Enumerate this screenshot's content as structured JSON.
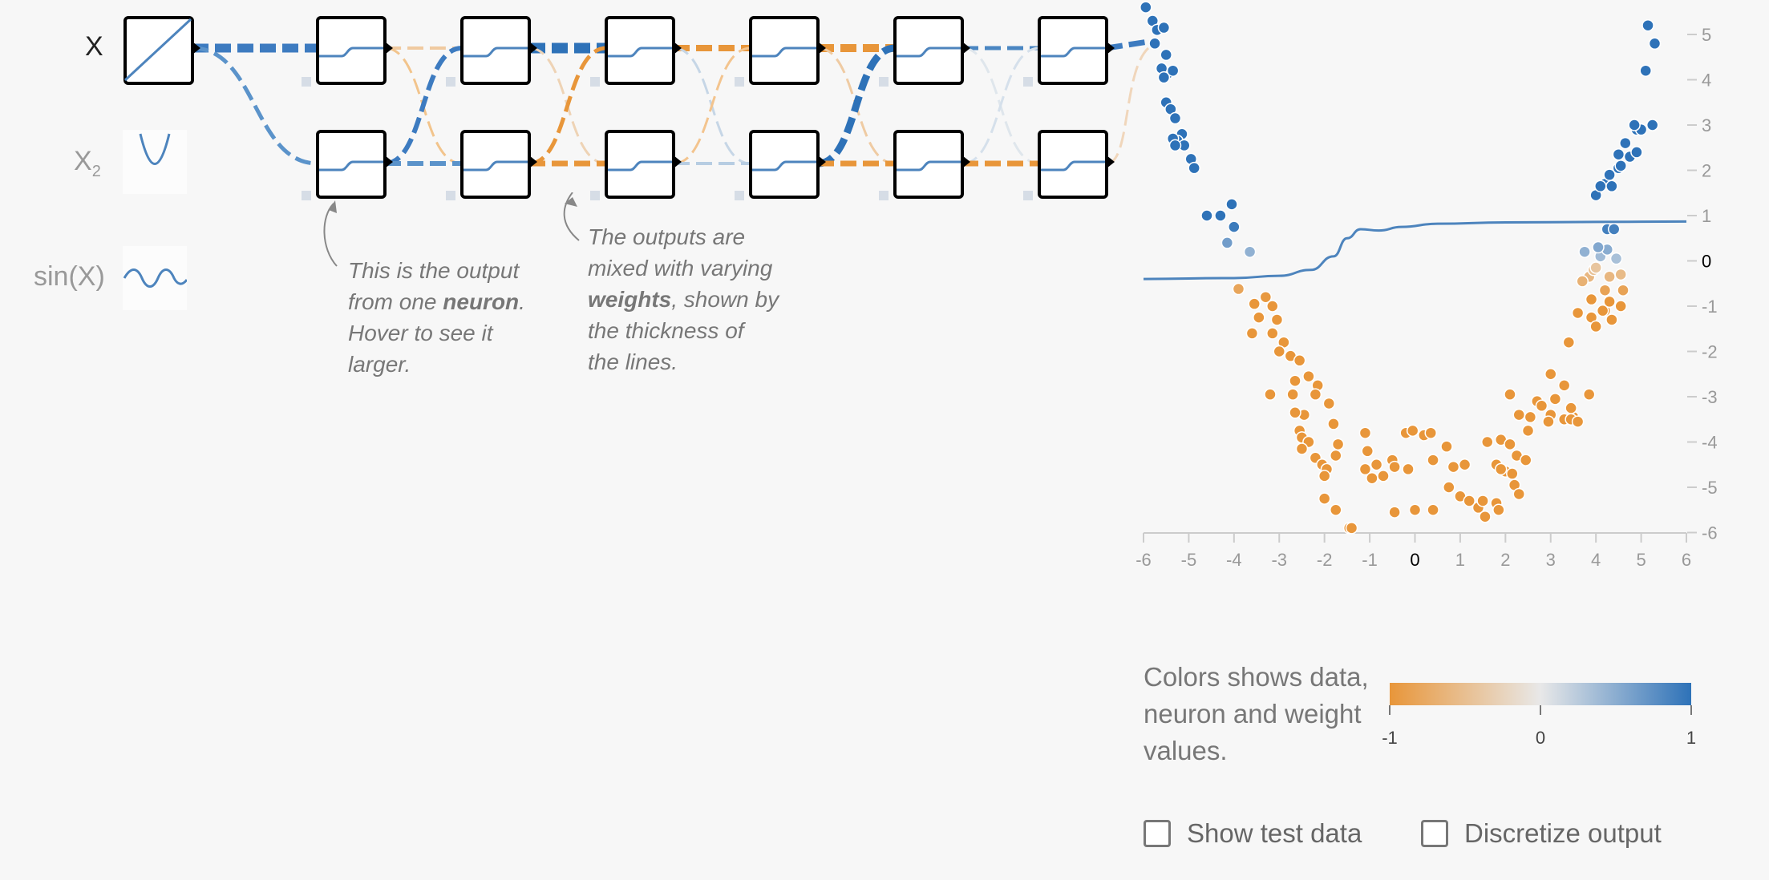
{
  "features": [
    {
      "label": "X",
      "sub": "",
      "color": "#000",
      "icon": "linear-icon"
    },
    {
      "label": "X",
      "sub": "2",
      "color": "#999",
      "icon": "parabola-icon"
    },
    {
      "label": "sin(X)",
      "sub": "",
      "color": "#999",
      "icon": "sine-wave-icon"
    }
  ],
  "annotations": {
    "neuron": {
      "line1": "This is the output",
      "line2_pre": "from one ",
      "line2_bold": "neuron",
      "line2_post": ".",
      "line3": "Hover to see it",
      "line4": "larger."
    },
    "weights": {
      "line1": "The outputs are",
      "line2": "mixed with varying",
      "line3_bold": "weights",
      "line3_post": ", shown by",
      "line4": "the thickness of",
      "line5": "the lines."
    }
  },
  "colors": {
    "negative": "#e8963a",
    "neutral": "#e8e8e8",
    "positive": "#2e72b8"
  },
  "chart_data": {
    "type": "scatter",
    "x_ticks": [
      "-6",
      "-5",
      "-4",
      "-3",
      "-2",
      "-1",
      "0",
      "1",
      "2",
      "3",
      "4",
      "5",
      "6"
    ],
    "y_ticks": [
      "5",
      "4",
      "3",
      "2",
      "1",
      "0",
      "-1",
      "-2",
      "-3",
      "-4",
      "-5",
      "-6"
    ],
    "xlim": [
      -6,
      6
    ],
    "ylim": [
      -6,
      5.5
    ],
    "prediction_curve": [
      [
        -6,
        -0.4
      ],
      [
        -4,
        -0.38
      ],
      [
        -3,
        -0.33
      ],
      [
        -2.3,
        -0.2
      ],
      [
        -1.8,
        0.1
      ],
      [
        -1.5,
        0.5
      ],
      [
        -1.2,
        0.7
      ],
      [
        -0.8,
        0.67
      ],
      [
        -0.3,
        0.75
      ],
      [
        0.5,
        0.82
      ],
      [
        2,
        0.85
      ],
      [
        4,
        0.86
      ],
      [
        6,
        0.87
      ]
    ],
    "points": [
      [
        -5.95,
        5.6
      ],
      [
        -5.8,
        5.3
      ],
      [
        -5.7,
        5.1
      ],
      [
        -5.55,
        5.15
      ],
      [
        -5.75,
        4.8
      ],
      [
        -5.5,
        4.55
      ],
      [
        -5.45,
        4.15
      ],
      [
        -5.6,
        4.25
      ],
      [
        -5.35,
        4.2
      ],
      [
        -5.55,
        4.05
      ],
      [
        -5.5,
        3.5
      ],
      [
        -5.4,
        3.35
      ],
      [
        -5.3,
        3.15
      ],
      [
        -5.15,
        2.8
      ],
      [
        -5.25,
        2.65
      ],
      [
        -5.1,
        2.55
      ],
      [
        -5.35,
        2.7
      ],
      [
        -5.3,
        2.55
      ],
      [
        -4.95,
        2.25
      ],
      [
        -4.88,
        2.05
      ],
      [
        -4.6,
        1.0
      ],
      [
        -4.3,
        1.0
      ],
      [
        -4.05,
        1.25
      ],
      [
        -4.0,
        0.75
      ],
      [
        -4.15,
        0.4
      ],
      [
        -3.65,
        0.2
      ],
      [
        -3.9,
        -0.62
      ],
      [
        -3.55,
        -0.95
      ],
      [
        -3.3,
        -0.8
      ],
      [
        -3.15,
        -1.0
      ],
      [
        -3.45,
        -1.25
      ],
      [
        -3.05,
        -1.3
      ],
      [
        -3.6,
        -1.6
      ],
      [
        -3.15,
        -1.6
      ],
      [
        -2.9,
        -1.8
      ],
      [
        -3.0,
        -2.0
      ],
      [
        -2.75,
        -2.1
      ],
      [
        -2.55,
        -2.2
      ],
      [
        -2.35,
        -2.55
      ],
      [
        -2.65,
        -2.65
      ],
      [
        -2.15,
        -2.75
      ],
      [
        -3.2,
        -2.95
      ],
      [
        -2.7,
        -2.95
      ],
      [
        -2.2,
        -2.95
      ],
      [
        -2.45,
        -3.4
      ],
      [
        -2.65,
        -3.35
      ],
      [
        -2.55,
        -3.75
      ],
      [
        -2.5,
        -3.9
      ],
      [
        -2.35,
        -4.0
      ],
      [
        -2.5,
        -4.15
      ],
      [
        -2.2,
        -4.35
      ],
      [
        -1.9,
        -3.15
      ],
      [
        -1.8,
        -3.6
      ],
      [
        -1.7,
        -4.05
      ],
      [
        -1.75,
        -4.3
      ],
      [
        -2.05,
        -4.5
      ],
      [
        -1.95,
        -4.6
      ],
      [
        -2.0,
        -4.75
      ],
      [
        -1.1,
        -3.8
      ],
      [
        -1.05,
        -4.2
      ],
      [
        -1.1,
        -4.6
      ],
      [
        -0.95,
        -4.8
      ],
      [
        -0.85,
        -4.5
      ],
      [
        -0.7,
        -4.75
      ],
      [
        -0.5,
        -4.4
      ],
      [
        -0.2,
        -3.8
      ],
      [
        -0.05,
        -3.75
      ],
      [
        -0.45,
        -4.55
      ],
      [
        -0.15,
        -4.6
      ],
      [
        -2.0,
        -5.25
      ],
      [
        -1.75,
        -5.5
      ],
      [
        -1.45,
        -5.9
      ],
      [
        -1.4,
        -5.9
      ],
      [
        0.2,
        -3.85
      ],
      [
        0.35,
        -3.8
      ],
      [
        0.7,
        -4.1
      ],
      [
        0.4,
        -4.4
      ],
      [
        0.85,
        -4.55
      ],
      [
        1.1,
        -4.5
      ],
      [
        0.75,
        -5.0
      ],
      [
        1.0,
        -5.2
      ],
      [
        1.2,
        -5.3
      ],
      [
        0.4,
        -5.5
      ],
      [
        0.0,
        -5.5
      ],
      [
        -0.45,
        -5.55
      ],
      [
        1.4,
        -5.45
      ],
      [
        1.5,
        -5.3
      ],
      [
        1.8,
        -5.35
      ],
      [
        1.55,
        -5.65
      ],
      [
        1.6,
        -4.0
      ],
      [
        1.9,
        -3.95
      ],
      [
        1.8,
        -4.5
      ],
      [
        2.0,
        -4.65
      ],
      [
        2.15,
        -4.7
      ],
      [
        1.9,
        -4.6
      ],
      [
        2.2,
        -4.95
      ],
      [
        2.3,
        -5.15
      ],
      [
        1.85,
        -5.5
      ],
      [
        2.1,
        -4.05
      ],
      [
        2.25,
        -4.3
      ],
      [
        2.45,
        -4.4
      ],
      [
        2.1,
        -2.95
      ],
      [
        2.3,
        -3.4
      ],
      [
        2.55,
        -3.45
      ],
      [
        2.7,
        -3.1
      ],
      [
        2.5,
        -3.75
      ],
      [
        2.8,
        -3.2
      ],
      [
        3.0,
        -3.4
      ],
      [
        2.95,
        -3.55
      ],
      [
        3.1,
        -3.05
      ],
      [
        3.0,
        -2.5
      ],
      [
        3.3,
        -2.75
      ],
      [
        3.5,
        -3.45
      ],
      [
        3.3,
        -3.5
      ],
      [
        3.45,
        -3.25
      ],
      [
        3.85,
        -2.95
      ],
      [
        3.45,
        -3.5
      ],
      [
        3.6,
        -3.55
      ],
      [
        3.4,
        -1.8
      ],
      [
        3.6,
        -1.15
      ],
      [
        3.9,
        -1.25
      ],
      [
        4.0,
        -1.45
      ],
      [
        4.2,
        -1.1
      ],
      [
        3.9,
        -0.85
      ],
      [
        4.2,
        -0.65
      ],
      [
        4.15,
        -1.1
      ],
      [
        4.35,
        -1.3
      ],
      [
        4.55,
        -1.0
      ],
      [
        4.3,
        -0.9
      ],
      [
        4.6,
        -0.65
      ],
      [
        3.85,
        -0.35
      ],
      [
        3.95,
        -0.2
      ],
      [
        3.7,
        -0.45
      ],
      [
        3.75,
        0.2
      ],
      [
        4.0,
        -0.15
      ],
      [
        4.3,
        -0.35
      ],
      [
        4.1,
        0.1
      ],
      [
        4.25,
        0.25
      ],
      [
        4.45,
        0.05
      ],
      [
        4.55,
        -0.3
      ],
      [
        4.25,
        0.7
      ],
      [
        4.4,
        0.7
      ],
      [
        4.05,
        0.3
      ],
      [
        4.0,
        1.45
      ],
      [
        4.2,
        1.7
      ],
      [
        4.3,
        1.9
      ],
      [
        4.5,
        2.05
      ],
      [
        4.55,
        2.1
      ],
      [
        4.5,
        2.35
      ],
      [
        4.75,
        2.3
      ],
      [
        4.9,
        2.4
      ],
      [
        4.9,
        2.9
      ],
      [
        5.0,
        2.9
      ],
      [
        5.25,
        3.0
      ],
      [
        4.85,
        3.0
      ],
      [
        5.1,
        4.2
      ],
      [
        5.15,
        5.2
      ],
      [
        5.3,
        4.8
      ],
      [
        4.35,
        1.65
      ],
      [
        4.1,
        1.65
      ],
      [
        4.65,
        2.6
      ]
    ]
  },
  "legend": {
    "text": "Colors shows data, neuron and weight values.",
    "ticks": [
      "-1",
      "0",
      "1"
    ]
  },
  "checkboxes": {
    "test_data": "Show test data",
    "discretize": "Discretize output"
  }
}
